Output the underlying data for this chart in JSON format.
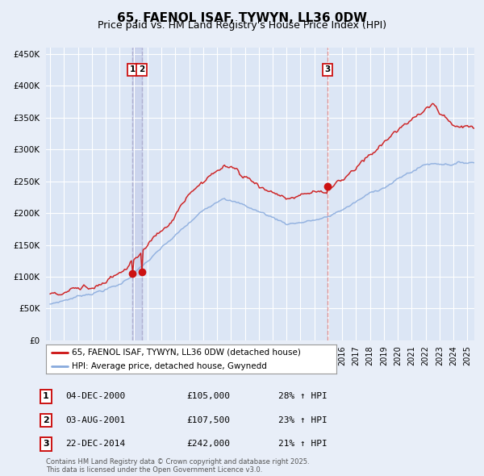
{
  "title": "65, FAENOL ISAF, TYWYN, LL36 0DW",
  "subtitle": "Price paid vs. HM Land Registry's House Price Index (HPI)",
  "legend_line1": "65, FAENOL ISAF, TYWYN, LL36 0DW (detached house)",
  "legend_line2": "HPI: Average price, detached house, Gwynedd",
  "footer": "Contains HM Land Registry data © Crown copyright and database right 2025.\nThis data is licensed under the Open Government Licence v3.0.",
  "transactions": [
    {
      "num": 1,
      "date": "04-DEC-2000",
      "price": "£105,000",
      "hpi_pct": "28% ↑ HPI",
      "year": 2000.917
    },
    {
      "num": 2,
      "date": "03-AUG-2001",
      "price": "£107,500",
      "hpi_pct": "23% ↑ HPI",
      "year": 2001.583
    },
    {
      "num": 3,
      "date": "22-DEC-2014",
      "price": "£242,000",
      "hpi_pct": "21% ↑ HPI",
      "year": 2014.958
    }
  ],
  "t1_x": 2000.917,
  "t2_x": 2001.583,
  "t3_x": 2014.958,
  "t1_y": 105000,
  "t2_y": 107500,
  "t3_y": 242000,
  "ylim": [
    0,
    460000
  ],
  "yticks": [
    0,
    50000,
    100000,
    150000,
    200000,
    250000,
    300000,
    350000,
    400000,
    450000
  ],
  "xlim_start": 1994.7,
  "xlim_end": 2025.5,
  "background_color": "#e8eef8",
  "plot_bg_color": "#dce6f5",
  "grid_color": "#ffffff",
  "red_line_color": "#cc1111",
  "blue_line_color": "#88aadd",
  "vline12_color": "#aaaacc",
  "vline3_color": "#dd8888",
  "title_fontsize": 11,
  "subtitle_fontsize": 9
}
